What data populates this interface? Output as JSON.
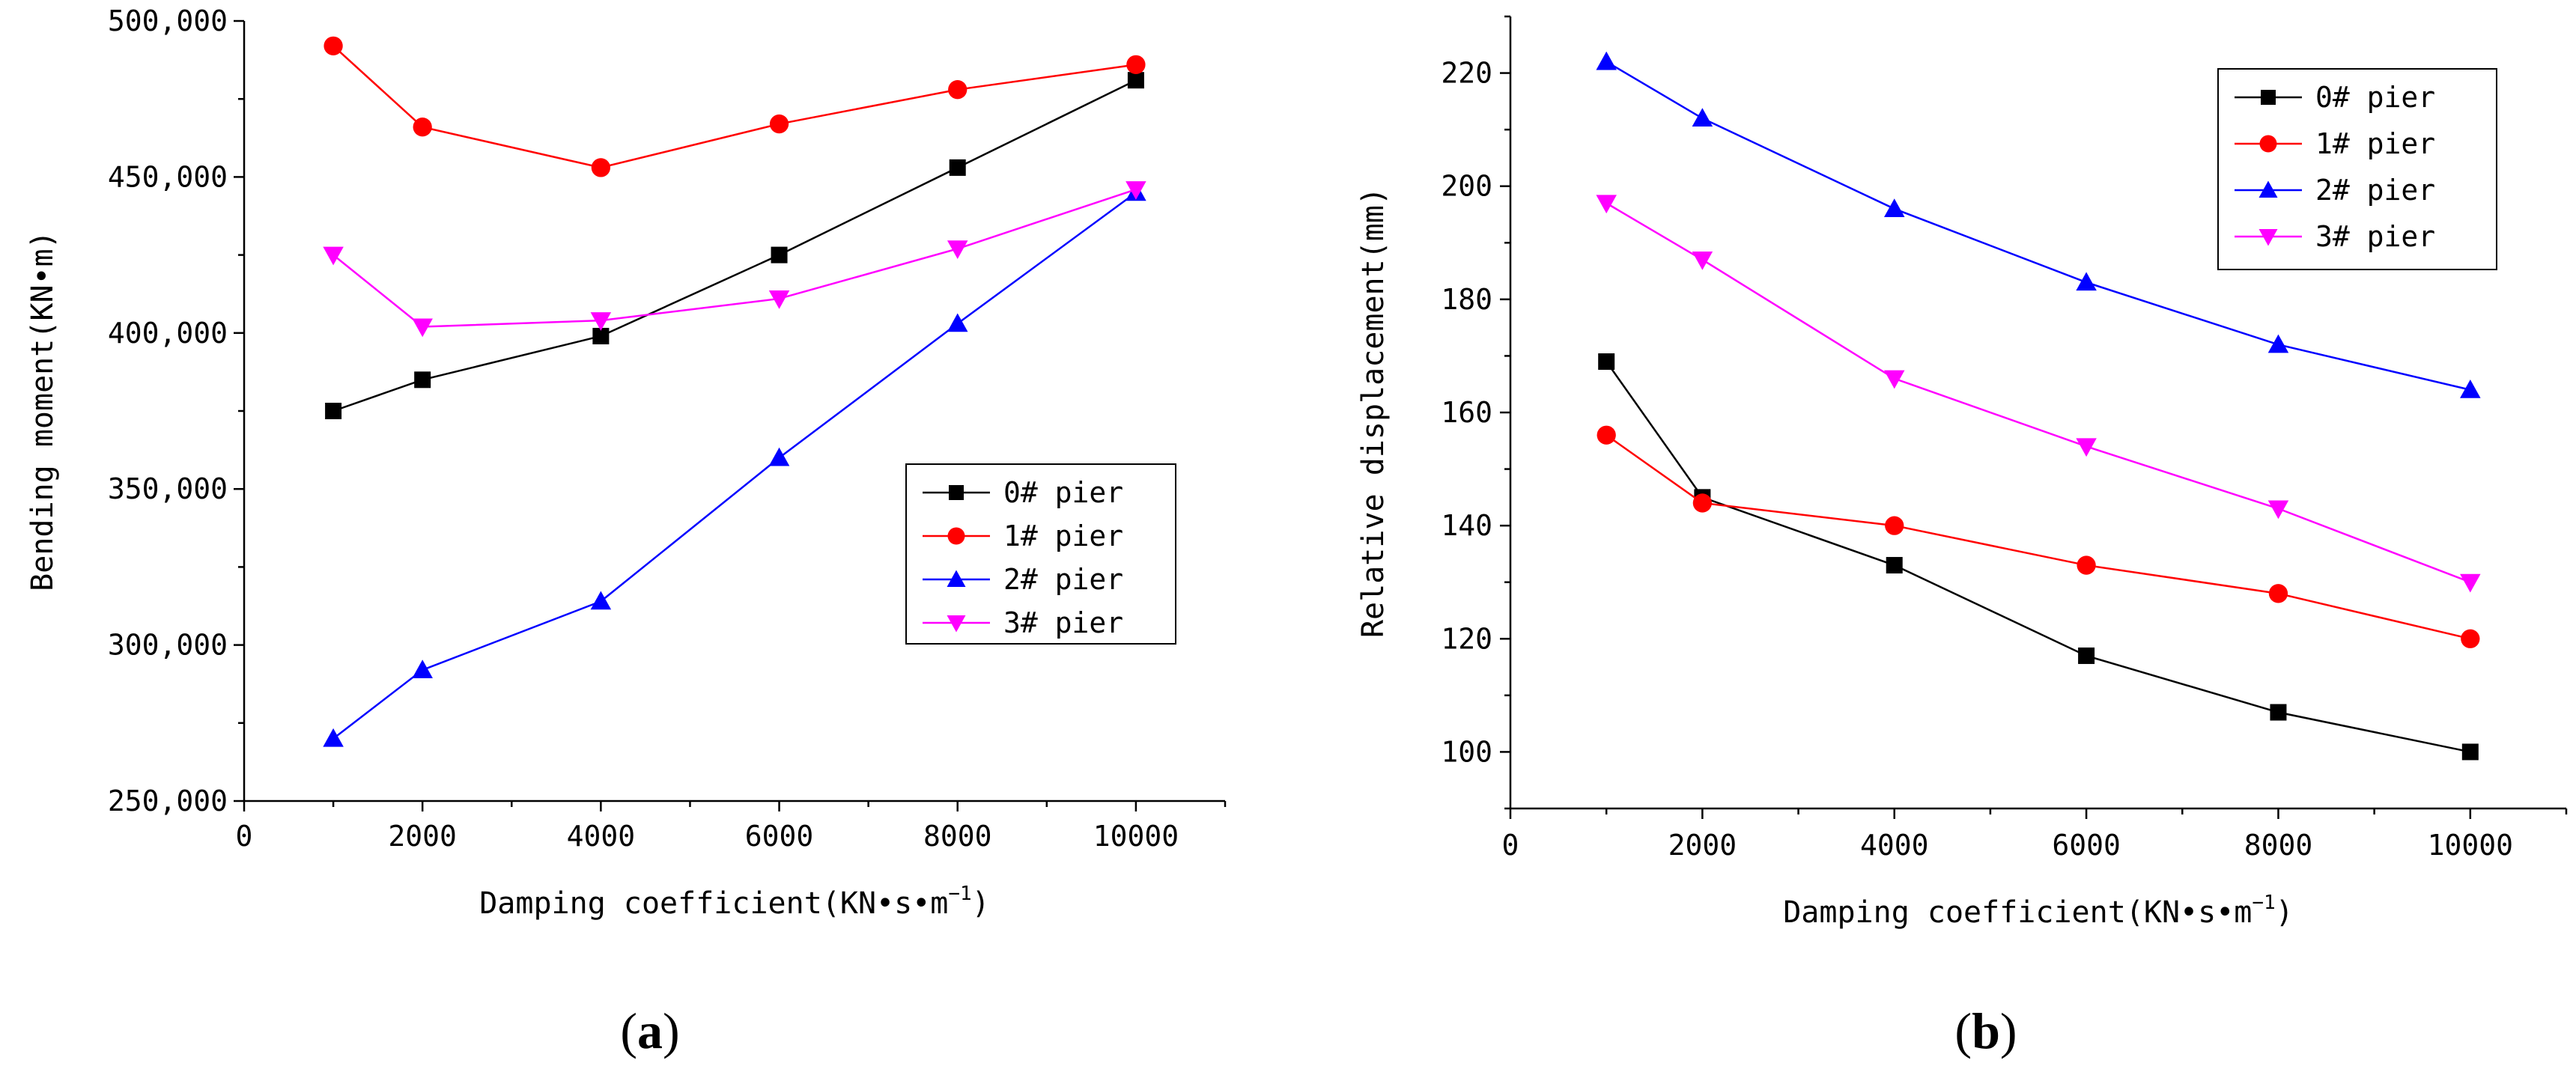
{
  "chart_data": [
    {
      "id": "a",
      "type": "line",
      "panel_label": "a",
      "xlabel": "Damping coefficient(KN•s•m",
      "xlabel_sup": "−1",
      "xlabel_close": ")",
      "ylabel": "Bending moment(KN•m)",
      "xlim": [
        0,
        11000
      ],
      "ylim": [
        250000,
        500000
      ],
      "xticks": [
        0,
        2000,
        4000,
        6000,
        8000,
        10000
      ],
      "xtick_labels": [
        "0",
        "2000",
        "4000",
        "6000",
        "8000",
        "10000"
      ],
      "yticks": [
        250000,
        300000,
        350000,
        400000,
        450000,
        500000
      ],
      "ytick_labels": [
        "250,000",
        "300,000",
        "350,000",
        "400,000",
        "450,000",
        "500,000"
      ],
      "legend_position": "center-right",
      "x": [
        1000,
        2000,
        4000,
        6000,
        8000,
        10000
      ],
      "series": [
        {
          "name": "0# pier",
          "color": "#000000",
          "marker": "square",
          "values": [
            375000,
            385000,
            399000,
            425000,
            453000,
            481000
          ]
        },
        {
          "name": "1# pier",
          "color": "#ff0000",
          "marker": "circle",
          "values": [
            492000,
            466000,
            453000,
            467000,
            478000,
            486000
          ]
        },
        {
          "name": "2# pier",
          "color": "#0000ff",
          "marker": "triangle-up",
          "values": [
            270000,
            292000,
            314000,
            360000,
            403000,
            445000
          ]
        },
        {
          "name": "3# pier",
          "color": "#ff00ff",
          "marker": "triangle-down",
          "values": [
            425000,
            402000,
            404000,
            411000,
            427000,
            446000
          ]
        }
      ]
    },
    {
      "id": "b",
      "type": "line",
      "panel_label": "b",
      "xlabel": "Damping coefficient(KN•s•m",
      "xlabel_sup": "−1",
      "xlabel_close": ")",
      "ylabel": "Relative displacement(mm)",
      "xlim": [
        0,
        11000
      ],
      "ylim": [
        90,
        230
      ],
      "xticks": [
        0,
        2000,
        4000,
        6000,
        8000,
        10000
      ],
      "xtick_labels": [
        "0",
        "2000",
        "4000",
        "6000",
        "8000",
        "10000"
      ],
      "yticks": [
        100,
        120,
        140,
        160,
        180,
        200,
        220
      ],
      "ytick_labels": [
        "100",
        "120",
        "140",
        "160",
        "180",
        "200",
        "220"
      ],
      "legend_position": "top-right",
      "x": [
        1000,
        2000,
        4000,
        6000,
        8000,
        10000
      ],
      "series": [
        {
          "name": "0# pier",
          "color": "#000000",
          "marker": "square",
          "values": [
            169,
            145,
            133,
            117,
            107,
            100
          ]
        },
        {
          "name": "1# pier",
          "color": "#ff0000",
          "marker": "circle",
          "values": [
            156,
            144,
            140,
            133,
            128,
            120
          ]
        },
        {
          "name": "2# pier",
          "color": "#0000ff",
          "marker": "triangle-up",
          "values": [
            222,
            212,
            196,
            183,
            172,
            164
          ]
        },
        {
          "name": "3# pier",
          "color": "#ff00ff",
          "marker": "triangle-down",
          "values": [
            197,
            187,
            166,
            154,
            143,
            130
          ]
        }
      ]
    }
  ]
}
